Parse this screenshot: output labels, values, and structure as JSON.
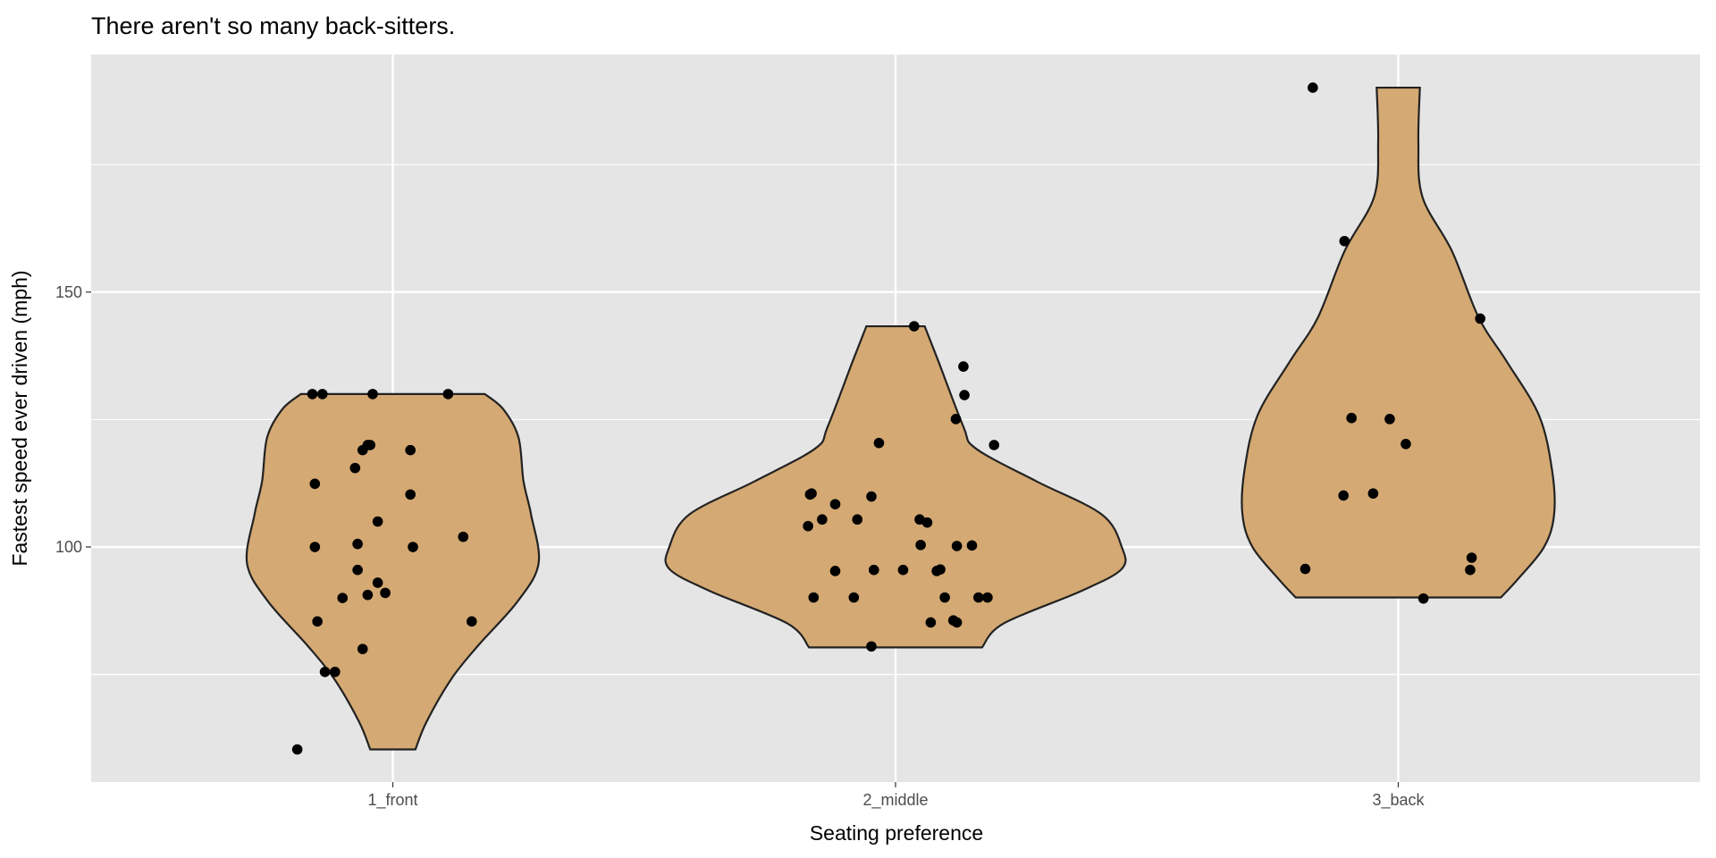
{
  "chart_data": {
    "type": "violin",
    "title": "There aren't so many back-sitters.",
    "xlabel": "Seating preference",
    "ylabel": "Fastest speed ever driven (mph)",
    "categories": [
      "1_front",
      "2_middle",
      "3_back"
    ],
    "y_ticks": [
      100,
      150
    ],
    "y_minor": [
      75,
      125,
      175
    ],
    "ylim": [
      53.9,
      196.6
    ],
    "grid": true,
    "fill_color": "#D4A973",
    "panel_color": "#E5E5E5",
    "violins": [
      {
        "category": "1_front",
        "min": 60.3,
        "max": 130,
        "profile": [
          [
            60.3,
            0.045
          ],
          [
            65.7,
            0.067
          ],
          [
            74.2,
            0.117
          ],
          [
            80.7,
            0.17
          ],
          [
            89.3,
            0.248
          ],
          [
            96.8,
            0.29
          ],
          [
            106.4,
            0.275
          ],
          [
            112.9,
            0.26
          ],
          [
            121.5,
            0.25
          ],
          [
            127,
            0.22
          ],
          [
            130,
            0.183
          ]
        ]
      },
      {
        "category": "2_middle",
        "min": 80.3,
        "max": 143.3,
        "profile": [
          [
            80.3,
            0.172
          ],
          [
            85,
            0.215
          ],
          [
            91.4,
            0.37
          ],
          [
            95.7,
            0.45
          ],
          [
            100,
            0.45
          ],
          [
            106.4,
            0.41
          ],
          [
            112.9,
            0.28
          ],
          [
            119.3,
            0.16
          ],
          [
            123.6,
            0.135
          ],
          [
            136.5,
            0.085
          ],
          [
            143.3,
            0.058
          ]
        ]
      },
      {
        "category": "3_back",
        "min": 90.1,
        "max": 190.1,
        "profile": [
          [
            90.1,
            0.204
          ],
          [
            93.6,
            0.237
          ],
          [
            100,
            0.29
          ],
          [
            106.4,
            0.31
          ],
          [
            115,
            0.306
          ],
          [
            125.8,
            0.28
          ],
          [
            136.5,
            0.215
          ],
          [
            145,
            0.16
          ],
          [
            158,
            0.107
          ],
          [
            168.7,
            0.048
          ],
          [
            179.4,
            0.04
          ],
          [
            190.1,
            0.043
          ]
        ]
      }
    ],
    "points": [
      {
        "category": "1_front",
        "values": [
          [
            130,
            -0.16
          ],
          [
            130,
            -0.14
          ],
          [
            130,
            -0.04
          ],
          [
            130,
            0.11
          ],
          [
            120,
            -0.05
          ],
          [
            120,
            -0.045
          ],
          [
            119,
            -0.06
          ],
          [
            119,
            0.035
          ],
          [
            115.5,
            -0.075
          ],
          [
            112.4,
            -0.155
          ],
          [
            110.3,
            0.035
          ],
          [
            105,
            -0.03
          ],
          [
            100.6,
            -0.07
          ],
          [
            100,
            -0.155
          ],
          [
            100,
            0.04
          ],
          [
            102,
            0.14
          ],
          [
            95.5,
            -0.07
          ],
          [
            93,
            -0.03
          ],
          [
            91,
            -0.015
          ],
          [
            90.6,
            -0.05
          ],
          [
            90,
            -0.1
          ],
          [
            85.4,
            -0.15
          ],
          [
            85.4,
            0.157
          ],
          [
            80,
            -0.06
          ],
          [
            75.5,
            -0.135
          ],
          [
            75.5,
            -0.115
          ],
          [
            60.3,
            -0.19
          ]
        ]
      },
      {
        "category": "2_middle",
        "values": [
          [
            143.3,
            0.037
          ],
          [
            135.4,
            0.135
          ],
          [
            129.8,
            0.137
          ],
          [
            125.1,
            0.12
          ],
          [
            120,
            0.196
          ],
          [
            120.4,
            -0.033
          ],
          [
            110.3,
            -0.17
          ],
          [
            110.5,
            -0.167
          ],
          [
            109.9,
            -0.048
          ],
          [
            108.4,
            -0.12
          ],
          [
            105.4,
            -0.146
          ],
          [
            105.4,
            -0.076
          ],
          [
            105.4,
            0.048
          ],
          [
            104.8,
            0.063
          ],
          [
            104.1,
            -0.174
          ],
          [
            100.4,
            0.05
          ],
          [
            100.2,
            0.122
          ],
          [
            100.3,
            0.152
          ],
          [
            95.3,
            -0.12
          ],
          [
            95.5,
            0.015
          ],
          [
            95.3,
            0.082
          ],
          [
            95.6,
            0.089
          ],
          [
            95.5,
            -0.043
          ],
          [
            90.1,
            0.098
          ],
          [
            90.1,
            -0.163
          ],
          [
            90.1,
            -0.083
          ],
          [
            90.1,
            0.165
          ],
          [
            90.1,
            0.183
          ],
          [
            85.2,
            0.07
          ],
          [
            85.6,
            0.115
          ],
          [
            85.2,
            0.122
          ],
          [
            80.5,
            -0.048
          ]
        ]
      },
      {
        "category": "3_back",
        "values": [
          [
            190.1,
            -0.17
          ],
          [
            160,
            -0.107
          ],
          [
            144.8,
            0.163
          ],
          [
            125.3,
            -0.093
          ],
          [
            125.1,
            -0.017
          ],
          [
            120.2,
            0.015
          ],
          [
            110.1,
            -0.109
          ],
          [
            110.5,
            -0.05
          ],
          [
            97.9,
            0.146
          ],
          [
            95.7,
            -0.185
          ],
          [
            95.5,
            0.143
          ],
          [
            89.9,
            0.05
          ]
        ]
      }
    ]
  }
}
